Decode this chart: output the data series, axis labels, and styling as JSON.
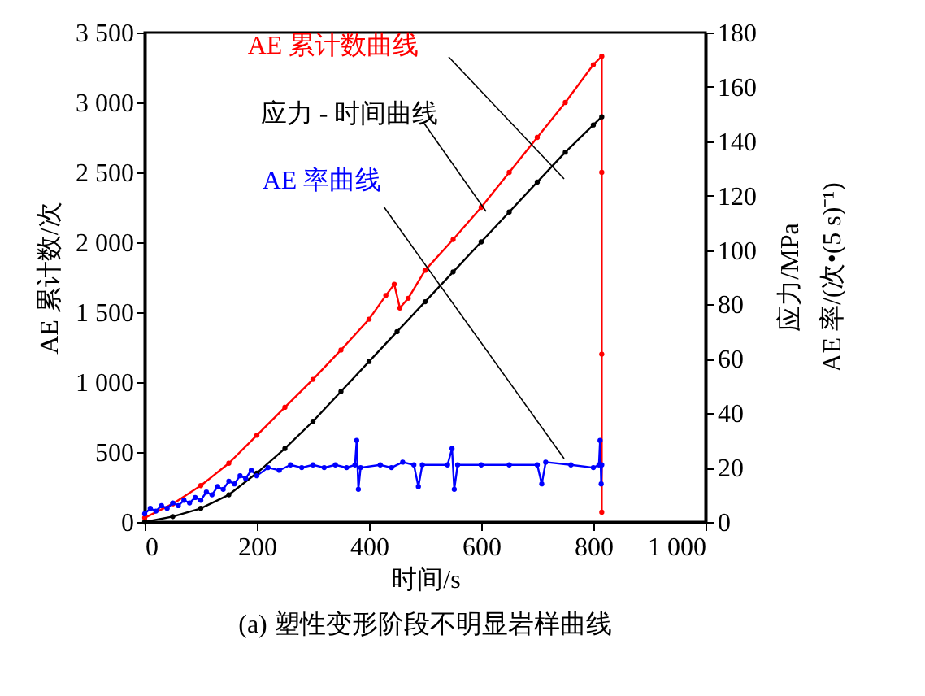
{
  "chart_data": {
    "type": "line",
    "title": "(a) 塑性变形阶段不明显岩样曲线",
    "xlabel": "时间/s",
    "ylabel": "AE 累计数/次",
    "y2label": "应力/MPa\nAE 率/(次•(5 s)⁻¹)",
    "xlim": [
      0,
      1000
    ],
    "xticks": [
      0,
      200,
      400,
      600,
      800,
      {
        "value": 1000,
        "label": "1 000"
      }
    ],
    "ylim": [
      0,
      3500
    ],
    "yticks": [
      0,
      500,
      {
        "value": 1000,
        "label": "1 000"
      },
      {
        "value": 1500,
        "label": "1 500"
      },
      {
        "value": 2000,
        "label": "2 000"
      },
      {
        "value": 2500,
        "label": "2 500"
      },
      {
        "value": 3000,
        "label": "3 000"
      },
      {
        "value": 3500,
        "label": "3 500"
      }
    ],
    "y2lim": [
      0,
      180
    ],
    "y2ticks": [
      0,
      20,
      40,
      60,
      80,
      100,
      120,
      140,
      160,
      180
    ],
    "grid": false,
    "legend": false,
    "marker": "circle",
    "line_style": "solid",
    "series": [
      {
        "name": "AE 累计数曲线",
        "color": "#ff0000",
        "x": [
          0,
          50,
          100,
          150,
          200,
          250,
          300,
          350,
          400,
          430,
          445,
          455,
          470,
          500,
          550,
          600,
          650,
          700,
          750,
          800,
          815,
          815,
          815,
          815
        ],
        "values": [
          30,
          130,
          260,
          420,
          620,
          820,
          1020,
          1230,
          1450,
          1620,
          1700,
          1530,
          1600,
          1800,
          2020,
          2250,
          2500,
          2750,
          3000,
          3270,
          3330,
          2500,
          1200,
          70
        ]
      },
      {
        "name": "应力 - 时间曲线",
        "color": "#000000",
        "axis": "y2",
        "x": [
          0,
          50,
          100,
          150,
          200,
          250,
          300,
          350,
          400,
          450,
          500,
          550,
          600,
          650,
          700,
          750,
          800,
          815
        ],
        "values": [
          0,
          2,
          5,
          10,
          18,
          27,
          37,
          48,
          59,
          70,
          81,
          92,
          103,
          114,
          125,
          136,
          146,
          149
        ]
      },
      {
        "name": "AE 率曲线",
        "color": "#0000ff",
        "axis": "y2",
        "x": [
          0,
          10,
          20,
          30,
          40,
          50,
          60,
          70,
          80,
          90,
          100,
          110,
          120,
          130,
          140,
          150,
          160,
          170,
          180,
          190,
          200,
          220,
          240,
          260,
          280,
          300,
          320,
          340,
          360,
          375,
          378,
          381,
          385,
          420,
          440,
          460,
          480,
          488,
          495,
          540,
          548,
          552,
          558,
          600,
          650,
          700,
          708,
          715,
          760,
          800,
          810,
          812,
          814,
          815
        ],
        "values": [
          3,
          5,
          4,
          6,
          5,
          7,
          6,
          8,
          7,
          9,
          8,
          11,
          10,
          13,
          12,
          15,
          14,
          17,
          16,
          19,
          17,
          20,
          19,
          21,
          20,
          21,
          20,
          21,
          20,
          21,
          30,
          12,
          20,
          21,
          20,
          22,
          21,
          13,
          21,
          21,
          27,
          12,
          21,
          21,
          21,
          21,
          14,
          22,
          21,
          20,
          21,
          30,
          14,
          21
        ]
      }
    ]
  }
}
